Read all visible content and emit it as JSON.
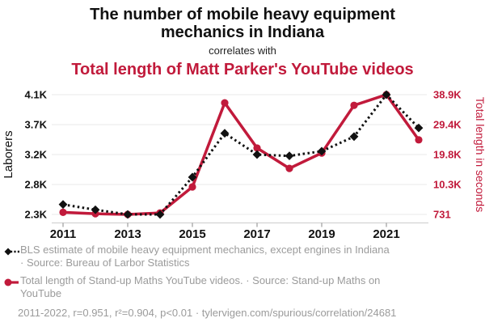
{
  "header": {
    "title_black": "The number of mobile heavy equipment mechanics in Indiana",
    "subtitle": "correlates with",
    "title_red": "Total length of Matt Parker's YouTube videos"
  },
  "chart_data": {
    "type": "line",
    "x": [
      2011,
      2012,
      2013,
      2014,
      2015,
      2016,
      2017,
      2018,
      2019,
      2020,
      2021,
      2022
    ],
    "x_tick_labels": [
      "2011",
      "2013",
      "2015",
      "2017",
      "2019",
      "2021"
    ],
    "series": [
      {
        "name": "BLS estimate of mobile heavy equipment mechanics, except engines in Indiana",
        "axis": "left",
        "marker": "diamond",
        "line_style": "dotted",
        "values": [
          2460,
          2380,
          2310,
          2310,
          2870,
          3530,
          3210,
          3190,
          3260,
          3480,
          4110,
          3610
        ]
      },
      {
        "name": "Total length of Stand-up Maths YouTube videos",
        "axis": "right",
        "marker": "circle",
        "line_style": "solid",
        "values": [
          1400,
          950,
          731,
          1200,
          9500,
          36300,
          21900,
          15400,
          20300,
          35500,
          38900,
          24500
        ]
      }
    ],
    "left_axis": {
      "label": "Laborers",
      "min": 2310,
      "max": 4110,
      "tick_labels": [
        "2.3K",
        "2.8K",
        "3.2K",
        "3.7K",
        "4.1K"
      ]
    },
    "right_axis": {
      "label": "Total length in seconds",
      "min": 731,
      "max": 38900,
      "tick_labels": [
        "731",
        "10.3K",
        "19.8K",
        "29.4K",
        "38.9K"
      ]
    },
    "grid": true,
    "legend_position": "bottom"
  },
  "legend": {
    "entries": [
      {
        "lines": [
          "BLS estimate of mobile heavy equipment mechanics, except engines in Indiana",
          "· Source: Bureau of Larbor Statistics"
        ]
      },
      {
        "lines": [
          "Total length of Stand-up Maths YouTube videos. · Source: Stand-up Maths on",
          "YouTube"
        ]
      }
    ]
  },
  "footer": {
    "text": "2011-2022, r=0.951, r²=0.904, p<0.01 · tylervigen.com/spurious/correlation/24681"
  },
  "colors": {
    "red": "#c11a3b",
    "black": "#111111",
    "grid": "#eaeaea",
    "axis_line": "#cccccc",
    "tick_mark": "#888888",
    "legend_text": "#9b9b9b"
  }
}
